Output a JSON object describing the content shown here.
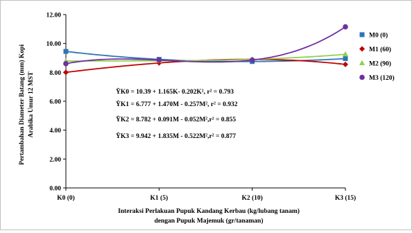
{
  "chart_data": {
    "type": "scatter",
    "categories": [
      "K0 (0)",
      "K1 (5)",
      "K2 (10)",
      "K3 (15)"
    ],
    "x": [
      0,
      5,
      10,
      15
    ],
    "xlim": [
      0,
      15
    ],
    "ylim": [
      0,
      12
    ],
    "yticks": [
      "0.00",
      "2.00",
      "4.00",
      "6.00",
      "8.00",
      "10.00",
      "12.00"
    ],
    "ytick_values": [
      0,
      2,
      4,
      6,
      8,
      10,
      12
    ],
    "ylabel_line1": "Pertambahan Diameter Batang (mm) Kopi",
    "ylabel_line2": "Arabika Umur 12 MST",
    "xlabel_line1": "Interaksi Perlakuan Pupuk Kandang Kerbau (kg/lubang tanam)",
    "xlabel_line2": "dengan Pupuk Majemuk (gr/tanaman)",
    "grid": false,
    "legend_position": "right",
    "series": [
      {
        "name": "M0 (0)",
        "color": "#2e75b6",
        "marker": "square",
        "values": [
          9.45,
          8.9,
          8.75,
          8.95
        ]
      },
      {
        "name": "M1 (60)",
        "color": "#c00000",
        "marker": "diamond",
        "values": [
          8.0,
          8.65,
          8.9,
          8.55
        ]
      },
      {
        "name": "M2 (90)",
        "color": "#92d050",
        "marker": "triangle",
        "values": [
          8.78,
          8.8,
          8.9,
          9.25
        ]
      },
      {
        "name": "M3 (120)",
        "color": "#7030a0",
        "marker": "circle",
        "values": [
          8.6,
          8.85,
          8.85,
          11.15
        ]
      }
    ],
    "equations": [
      "ŶK0 = 10.39 + 1.165K- 0.202K², r² = 0.793",
      "ŶK1 = 6.777 + 1.470M - 0.257M², r² = 0.932",
      "ŶK2 = 8.782 + 0.091M - 0.052M²,r² = 0.855",
      "ŶK3 = 9.942 + 1.835M - 0.522M²,r² = 0.877"
    ]
  }
}
